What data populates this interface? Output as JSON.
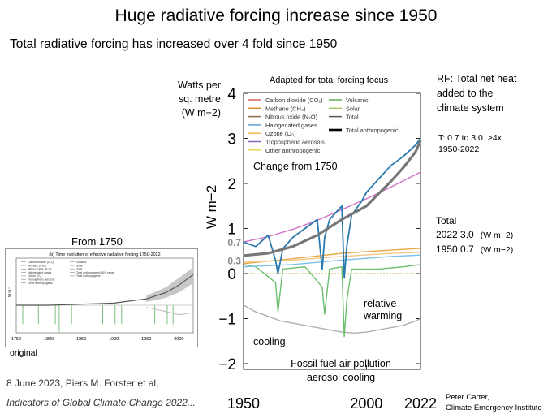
{
  "header": {
    "title": "Huge radiative forcing increase since 1950",
    "subtitle": "Total radiative forcing has increased over 4 fold since 1950"
  },
  "labels": {
    "y_units": "Watts per\nsq. metre\n(W m−2)",
    "rf_note": "RF: Total net heat\nadded to the\nclimate system",
    "rf_change": "T:  0.7 to 3.0.  >4x\n   1950-2022",
    "total_title": "Total",
    "total_2022": "2022 3.0",
    "total_1950": "1950 0.7",
    "total_unit": "(W m−2)",
    "from_1750": "From 1750",
    "original": "original",
    "citation_line1": "8 June 2023, Piers M. Forster et al,",
    "citation_line2": "Indicators of Global Climate Change 2022...",
    "credit": "Peter Carter,\nClimate Emergency Institute"
  },
  "chart_data": [
    {
      "type": "line",
      "title": "Adapted for total forcing focus",
      "ylabel": "W m−2",
      "xlim": [
        1950,
        2022
      ],
      "ylim": [
        -2.3,
        4
      ],
      "x_ticks": [
        "1950",
        "2000",
        "2022"
      ],
      "y_ticks": [
        "4",
        "3",
        "2",
        "1",
        "0",
        "−1",
        "−2"
      ],
      "marked_values": [
        "0.7",
        "0.3"
      ],
      "grid": false,
      "legend_position": "top",
      "legend": [
        {
          "label": "Carbon dioxide (CO₂)",
          "color": "#d95f5f"
        },
        {
          "label": "Methane (CH₄)",
          "color": "#e08a2c"
        },
        {
          "label": "Nitrous oxide (N₂O)",
          "color": "#8d6b4a"
        },
        {
          "label": "Halogenated gases",
          "color": "#5aa0d6"
        },
        {
          "label": "Ozone (O₃)",
          "color": "#f2b84b"
        },
        {
          "label": "Tropospheric aerosols",
          "color": "#8a63b8"
        },
        {
          "label": "Other anthropogenic",
          "color": "#e6d84a"
        },
        {
          "label": "Volcanic",
          "color": "#5fae5f"
        },
        {
          "label": "Solar",
          "color": "#a8c66c"
        },
        {
          "label": "Total",
          "color": "#555555"
        },
        {
          "label": "Total anthropogenic",
          "color": "#000000"
        }
      ],
      "annotations": [
        "Change from 1750",
        "relative",
        "warming",
        "cooling",
        "Fossil fuel air pollution",
        "aerosol cooling"
      ],
      "series": [
        {
          "name": "Total",
          "color": "#2a7ab0",
          "x": [
            1950,
            1955,
            1960,
            1963,
            1964,
            1966,
            1970,
            1975,
            1980,
            1982,
            1983,
            1985,
            1990,
            1991,
            1992,
            1994,
            1998,
            2000,
            2005,
            2010,
            2015,
            2020,
            2022
          ],
          "y": [
            0.7,
            0.6,
            0.85,
            0.3,
            0.0,
            0.55,
            0.8,
            1.0,
            1.2,
            0.1,
            0.8,
            1.2,
            1.5,
            -0.1,
            0.6,
            1.3,
            1.6,
            1.8,
            2.1,
            2.4,
            2.6,
            2.85,
            3.0
          ]
        },
        {
          "name": "Total anthropogenic",
          "color": "#777777",
          "x": [
            1950,
            1960,
            1970,
            1980,
            1990,
            2000,
            2010,
            2015,
            2020,
            2022
          ],
          "y": [
            0.4,
            0.45,
            0.6,
            0.85,
            1.2,
            1.5,
            2.05,
            2.35,
            2.7,
            2.95
          ]
        },
        {
          "name": "Carbon dioxide (CO₂)",
          "color": "#d070c8",
          "x": [
            1950,
            1960,
            1970,
            1980,
            1990,
            2000,
            2010,
            2022
          ],
          "y": [
            0.7,
            0.82,
            0.98,
            1.18,
            1.42,
            1.66,
            1.92,
            2.25
          ]
        },
        {
          "name": "Methane (CH₄)",
          "color": "#e9a848",
          "x": [
            1950,
            1970,
            1990,
            2010,
            2022
          ],
          "y": [
            0.22,
            0.33,
            0.45,
            0.52,
            0.56
          ]
        },
        {
          "name": "Halogenated gases",
          "color": "#7cc0e8",
          "x": [
            1950,
            1970,
            1990,
            2010,
            2022
          ],
          "y": [
            0.15,
            0.2,
            0.3,
            0.38,
            0.41
          ]
        },
        {
          "name": "Ozone (O₃)",
          "color": "#f5c98a",
          "x": [
            1950,
            1970,
            1990,
            2010,
            2022
          ],
          "y": [
            0.25,
            0.3,
            0.38,
            0.45,
            0.47
          ]
        },
        {
          "name": "Volcanic",
          "color": "#6cbf6c",
          "x": [
            1950,
            1955,
            1963,
            1964,
            1966,
            1975,
            1982,
            1983,
            1985,
            1990,
            1991,
            1992,
            1994,
            2005,
            2015,
            2022
          ],
          "y": [
            0.2,
            0.15,
            -0.2,
            -0.85,
            0.1,
            0.15,
            -0.3,
            -0.9,
            0.1,
            0.15,
            -1.4,
            -0.6,
            0.1,
            0.1,
            0.15,
            0.2
          ]
        },
        {
          "name": "Tropospheric aerosols",
          "color": "#b0b0b0",
          "x": [
            1950,
            1955,
            1960,
            1965,
            1970,
            1975,
            1980,
            1985,
            1990,
            1995,
            2000,
            2005,
            2010,
            2015,
            2020,
            2022
          ],
          "y": [
            -0.7,
            -0.85,
            -0.95,
            -1.05,
            -1.1,
            -1.15,
            -1.2,
            -1.25,
            -1.3,
            -1.32,
            -1.3,
            -1.25,
            -1.2,
            -1.15,
            -1.05,
            -1.0
          ]
        }
      ]
    },
    {
      "type": "line",
      "title": "(b) Time evolution of effective radiative forcing 1750-2022",
      "ylabel": "W m⁻²",
      "xlim": [
        1750,
        2022
      ],
      "x_ticks": [
        "1750",
        "1800",
        "1850",
        "1900",
        "1950",
        "2000"
      ],
      "legend": [
        "Carbon dioxide (CO₂)",
        "Methane (CH₄)",
        "Nitrous oxide (N₂O)",
        "Halogenated gases",
        "Ozone (O₃)",
        "Tropospheric aerosols",
        "Other anthropogenic",
        "Volcanic",
        "Solar",
        "Total",
        "Total anthropogenic 90% range",
        "Total anthropogenic"
      ],
      "series": [
        {
          "name": "Total",
          "color": "#555555",
          "x": [
            1750,
            1800,
            1850,
            1900,
            1950,
            1980,
            2000,
            2022
          ],
          "y": [
            0.0,
            0.0,
            0.1,
            0.2,
            0.6,
            1.2,
            1.9,
            2.9
          ]
        }
      ]
    }
  ]
}
